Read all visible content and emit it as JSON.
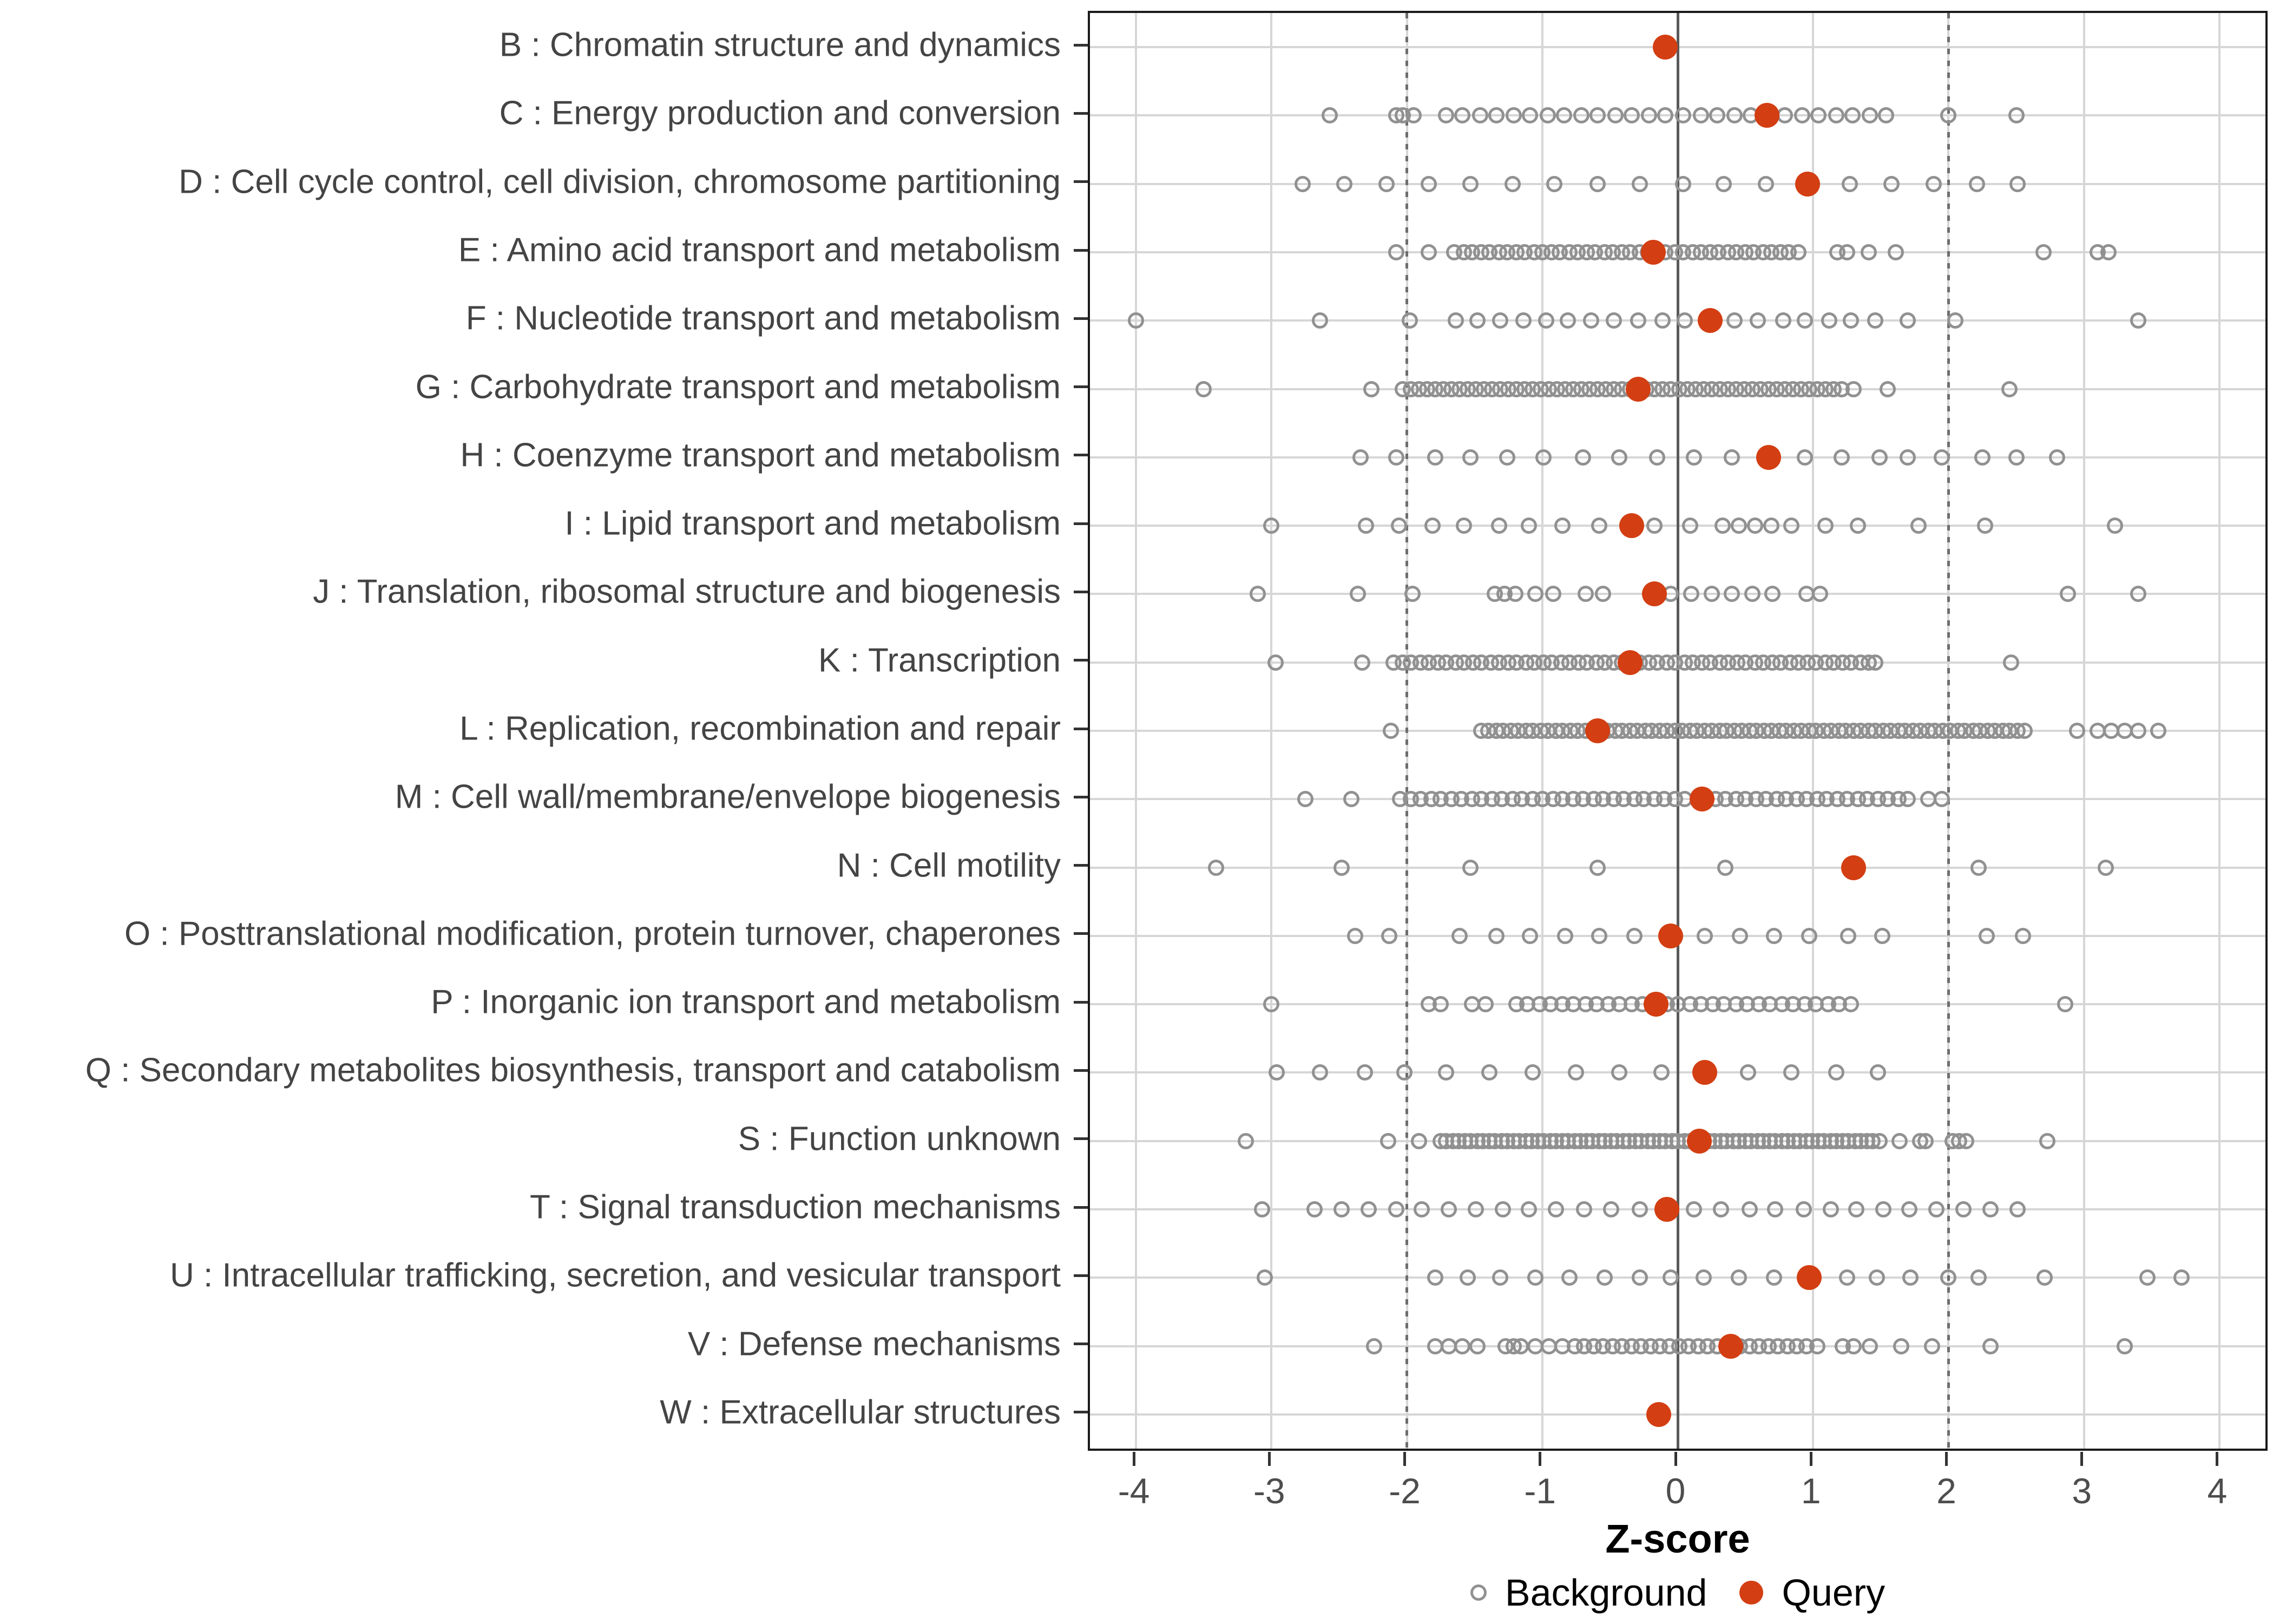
{
  "chart_data": {
    "type": "scatter",
    "title": "",
    "xlabel": "Z-score",
    "ylabel": "",
    "xlim": [
      -4.34,
      4.34
    ],
    "x_ticks": [
      -4,
      -3,
      -2,
      -1,
      0,
      1,
      2,
      3,
      4
    ],
    "grid": "on",
    "guides": {
      "solid_at": 0,
      "dotted_at": [
        -2,
        2
      ]
    },
    "legend_position": "bottom",
    "series": [
      {
        "name": "Background",
        "marker": "open-circle",
        "color": "#919191"
      },
      {
        "name": "Query",
        "marker": "filled-circle",
        "color": "#d33e12"
      }
    ],
    "categories": [
      {
        "label": "B : Chromatin structure and dynamics",
        "query": -0.09,
        "background": []
      },
      {
        "label": "C : Energy production and conversion",
        "query": 0.66,
        "background": [
          -2.57,
          -2.08,
          -2.03,
          -1.95,
          -1.71,
          -1.59,
          -1.46,
          -1.34,
          -1.21,
          -1.09,
          -0.96,
          -0.84,
          -0.71,
          -0.59,
          -0.46,
          -0.34,
          -0.21,
          -0.09,
          0.04,
          0.17,
          0.29,
          0.42,
          0.54,
          0.79,
          0.92,
          1.04,
          1.17,
          1.29,
          1.42,
          1.54,
          2.0,
          2.5
        ]
      },
      {
        "label": "D : Cell cycle control, cell division, chromosome partitioning",
        "query": 0.96,
        "background": [
          -2.77,
          -2.46,
          -2.15,
          -1.84,
          -1.53,
          -1.22,
          -0.91,
          -0.59,
          -0.28,
          0.04,
          0.34,
          0.65,
          1.27,
          1.58,
          1.89,
          2.21,
          2.51
        ]
      },
      {
        "label": "E : Amino acid transport and metabolism",
        "query": -0.18,
        "background": [
          -2.08,
          -1.84,
          -1.65,
          -1.58,
          -1.52,
          -1.45,
          -1.39,
          -1.32,
          -1.26,
          -1.19,
          -1.13,
          -1.06,
          -1.0,
          -0.93,
          -0.87,
          -0.8,
          -0.74,
          -0.67,
          -0.61,
          -0.54,
          -0.48,
          -0.41,
          -0.35,
          -0.28,
          -0.22,
          -0.15,
          -0.09,
          -0.02,
          0.04,
          0.11,
          0.17,
          0.24,
          0.3,
          0.37,
          0.43,
          0.5,
          0.56,
          0.63,
          0.69,
          0.76,
          0.82,
          0.89,
          1.18,
          1.25,
          1.41,
          1.61,
          2.7,
          3.1,
          3.18
        ]
      },
      {
        "label": "F : Nucleotide transport and metabolism",
        "query": 0.24,
        "background": [
          -4.0,
          -2.64,
          -1.98,
          -1.64,
          -1.48,
          -1.31,
          -1.14,
          -0.97,
          -0.81,
          -0.64,
          -0.47,
          -0.29,
          -0.11,
          0.05,
          0.42,
          0.59,
          0.78,
          0.94,
          1.12,
          1.28,
          1.46,
          1.7,
          2.05,
          3.4
        ]
      },
      {
        "label": "G : Carbohydrate transport and metabolism",
        "query": -0.29,
        "background": [
          -3.5,
          -2.26,
          -2.03,
          -1.97,
          -1.91,
          -1.85,
          -1.79,
          -1.73,
          -1.67,
          -1.61,
          -1.55,
          -1.49,
          -1.43,
          -1.37,
          -1.31,
          -1.25,
          -1.19,
          -1.13,
          -1.07,
          -1.01,
          -0.95,
          -0.89,
          -0.83,
          -0.77,
          -0.71,
          -0.65,
          -0.59,
          -0.53,
          -0.47,
          -0.41,
          -0.35,
          -0.23,
          -0.17,
          -0.11,
          -0.05,
          0.01,
          0.07,
          0.13,
          0.19,
          0.25,
          0.31,
          0.37,
          0.43,
          0.49,
          0.55,
          0.61,
          0.67,
          0.73,
          0.79,
          0.85,
          0.91,
          0.97,
          1.03,
          1.09,
          1.15,
          1.21,
          1.3,
          1.55,
          2.45
        ]
      },
      {
        "label": "H : Coenzyme transport and metabolism",
        "query": 0.67,
        "background": [
          -2.34,
          -2.08,
          -1.79,
          -1.53,
          -1.26,
          -0.99,
          -0.7,
          -0.43,
          -0.15,
          0.12,
          0.4,
          0.94,
          1.21,
          1.49,
          1.7,
          1.95,
          2.25,
          2.5,
          2.8
        ]
      },
      {
        "label": "I : Lipid transport and metabolism",
        "query": -0.34,
        "background": [
          -3.0,
          -2.3,
          -2.06,
          -1.81,
          -1.58,
          -1.32,
          -1.1,
          -0.85,
          -0.58,
          -0.17,
          0.09,
          0.33,
          0.45,
          0.57,
          0.69,
          0.84,
          1.09,
          1.33,
          1.78,
          2.27,
          3.23
        ]
      },
      {
        "label": "J : Translation, ribosomal structure and biogenesis",
        "query": -0.17,
        "background": [
          -3.1,
          -2.36,
          -1.96,
          -1.35,
          -1.28,
          -1.2,
          -1.05,
          -0.92,
          -0.68,
          -0.55,
          -0.05,
          0.1,
          0.25,
          0.4,
          0.55,
          0.7,
          0.95,
          1.05,
          2.88,
          3.4
        ]
      },
      {
        "label": "K : Transcription",
        "query": -0.35,
        "background": [
          -2.97,
          -2.33,
          -2.1,
          -2.03,
          -1.97,
          -1.9,
          -1.84,
          -1.77,
          -1.71,
          -1.64,
          -1.58,
          -1.51,
          -1.45,
          -1.38,
          -1.32,
          -1.25,
          -1.19,
          -1.12,
          -1.06,
          -0.99,
          -0.93,
          -0.86,
          -0.8,
          -0.73,
          -0.67,
          -0.6,
          -0.54,
          -0.47,
          -0.41,
          -0.28,
          -0.21,
          -0.15,
          -0.08,
          -0.02,
          0.05,
          0.11,
          0.18,
          0.24,
          0.31,
          0.37,
          0.44,
          0.5,
          0.57,
          0.63,
          0.7,
          0.76,
          0.83,
          0.89,
          0.96,
          1.02,
          1.09,
          1.15,
          1.22,
          1.28,
          1.35,
          1.41,
          1.46,
          2.46
        ]
      },
      {
        "label": "L : Replication, recombination and repair",
        "query": -0.59,
        "background": [
          -2.12,
          -1.45,
          -1.4,
          -1.34,
          -1.29,
          -1.23,
          -1.18,
          -1.12,
          -1.07,
          -1.01,
          -0.96,
          -0.9,
          -0.85,
          -0.79,
          -0.74,
          -0.68,
          -0.52,
          -0.46,
          -0.41,
          -0.35,
          -0.3,
          -0.24,
          -0.19,
          -0.13,
          -0.08,
          -0.02,
          0.03,
          0.09,
          0.14,
          0.2,
          0.25,
          0.31,
          0.36,
          0.42,
          0.47,
          0.53,
          0.58,
          0.64,
          0.69,
          0.75,
          0.8,
          0.86,
          0.91,
          0.97,
          1.02,
          1.08,
          1.13,
          1.19,
          1.24,
          1.3,
          1.35,
          1.41,
          1.46,
          1.52,
          1.57,
          1.63,
          1.68,
          1.74,
          1.79,
          1.85,
          1.9,
          1.96,
          2.01,
          2.07,
          2.12,
          2.18,
          2.23,
          2.29,
          2.34,
          2.4,
          2.45,
          2.51,
          2.56,
          2.95,
          3.1,
          3.2,
          3.3,
          3.4,
          3.55
        ]
      },
      {
        "label": "M : Cell wall/membrane/envelope biogenesis",
        "query": 0.18,
        "background": [
          -2.75,
          -2.41,
          -2.05,
          -1.97,
          -1.9,
          -1.82,
          -1.75,
          -1.67,
          -1.6,
          -1.52,
          -1.45,
          -1.37,
          -1.3,
          -1.22,
          -1.15,
          -1.07,
          -1.0,
          -0.92,
          -0.85,
          -0.77,
          -0.7,
          -0.62,
          -0.55,
          -0.47,
          -0.4,
          -0.32,
          -0.25,
          -0.17,
          -0.1,
          -0.02,
          0.05,
          0.28,
          0.35,
          0.43,
          0.5,
          0.58,
          0.65,
          0.73,
          0.8,
          0.88,
          0.95,
          1.03,
          1.1,
          1.18,
          1.25,
          1.33,
          1.4,
          1.48,
          1.55,
          1.63,
          1.7,
          1.85,
          1.95
        ]
      },
      {
        "label": "N : Cell motility",
        "query": 1.3,
        "background": [
          -3.41,
          -2.48,
          -1.53,
          -0.59,
          0.35,
          2.22,
          3.16
        ]
      },
      {
        "label": "O : Posttranslational modification, protein turnover, chaperones",
        "query": -0.05,
        "background": [
          -2.38,
          -2.13,
          -1.61,
          -1.34,
          -1.09,
          -0.83,
          -0.58,
          -0.32,
          0.2,
          0.46,
          0.71,
          0.97,
          1.26,
          1.51,
          2.28,
          2.55
        ]
      },
      {
        "label": "P : Inorganic ion transport and metabolism",
        "query": -0.16,
        "background": [
          -3.0,
          -1.84,
          -1.75,
          -1.52,
          -1.42,
          -1.19,
          -1.11,
          -1.02,
          -0.94,
          -0.85,
          -0.77,
          -0.68,
          -0.6,
          -0.51,
          -0.43,
          -0.34,
          -0.26,
          -0.08,
          0.0,
          0.09,
          0.17,
          0.26,
          0.34,
          0.43,
          0.51,
          0.6,
          0.68,
          0.77,
          0.85,
          0.94,
          1.02,
          1.11,
          1.19,
          1.28,
          2.86
        ]
      },
      {
        "label": "Q : Secondary metabolites biosynthesis, transport and catabolism",
        "query": 0.2,
        "background": [
          -2.96,
          -2.64,
          -2.31,
          -2.02,
          -1.71,
          -1.39,
          -1.07,
          -0.75,
          -0.43,
          -0.12,
          0.52,
          0.84,
          1.17,
          1.48
        ]
      },
      {
        "label": "S : Function unknown",
        "query": 0.16,
        "background": [
          -3.19,
          -2.14,
          -1.91,
          -1.75,
          -1.71,
          -1.66,
          -1.62,
          -1.57,
          -1.53,
          -1.48,
          -1.44,
          -1.39,
          -1.35,
          -1.3,
          -1.26,
          -1.21,
          -1.17,
          -1.12,
          -1.08,
          -1.03,
          -0.99,
          -0.94,
          -0.9,
          -0.85,
          -0.81,
          -0.76,
          -0.72,
          -0.67,
          -0.63,
          -0.58,
          -0.54,
          -0.49,
          -0.45,
          -0.4,
          -0.36,
          -0.31,
          -0.27,
          -0.22,
          -0.18,
          -0.13,
          -0.09,
          -0.04,
          0.0,
          0.05,
          0.09,
          0.23,
          0.27,
          0.32,
          0.36,
          0.41,
          0.45,
          0.5,
          0.54,
          0.59,
          0.63,
          0.68,
          0.72,
          0.77,
          0.81,
          0.86,
          0.9,
          0.95,
          0.99,
          1.04,
          1.08,
          1.13,
          1.17,
          1.22,
          1.26,
          1.31,
          1.35,
          1.4,
          1.44,
          1.49,
          1.64,
          1.79,
          1.83,
          2.03,
          2.08,
          2.13,
          2.73
        ]
      },
      {
        "label": "T : Signal transduction mechanisms",
        "query": -0.08,
        "background": [
          -3.07,
          -2.68,
          -2.48,
          -2.28,
          -2.08,
          -1.89,
          -1.69,
          -1.49,
          -1.29,
          -1.1,
          -0.9,
          -0.69,
          -0.49,
          -0.28,
          0.12,
          0.32,
          0.53,
          0.72,
          0.93,
          1.13,
          1.32,
          1.52,
          1.71,
          1.91,
          2.11,
          2.31,
          2.51
        ]
      },
      {
        "label": "U : Intracellular trafficking, secretion, and vesicular transport",
        "query": 0.97,
        "background": [
          -3.05,
          -1.79,
          -1.55,
          -1.31,
          -1.05,
          -0.8,
          -0.54,
          -0.28,
          -0.05,
          0.19,
          0.45,
          0.71,
          1.25,
          1.47,
          1.72,
          2.0,
          2.22,
          2.71,
          3.47,
          3.72
        ]
      },
      {
        "label": "V : Defense mechanisms",
        "query": 0.39,
        "background": [
          -2.24,
          -1.79,
          -1.69,
          -1.59,
          -1.48,
          -1.27,
          -1.21,
          -1.16,
          -1.05,
          -0.95,
          -0.85,
          -0.76,
          -0.69,
          -0.62,
          -0.55,
          -0.48,
          -0.41,
          -0.34,
          -0.27,
          -0.2,
          -0.13,
          -0.06,
          0.01,
          0.08,
          0.15,
          0.22,
          0.29,
          0.46,
          0.53,
          0.6,
          0.67,
          0.74,
          0.81,
          0.88,
          0.95,
          1.03,
          1.22,
          1.3,
          1.42,
          1.65,
          1.88,
          2.31,
          3.3
        ]
      },
      {
        "label": "W : Extracellular structures",
        "query": -0.14,
        "background": []
      }
    ],
    "legend": [
      {
        "label": "Background"
      },
      {
        "label": "Query"
      }
    ]
  },
  "colors": {
    "query": "#d33e12",
    "background_stroke": "#919191",
    "gridline": "#d6d6d6",
    "guide": "#5a5a5a",
    "axis_text": "#4d4d4d",
    "category_text": "#444444",
    "panel_border": "#1a1a1a"
  }
}
